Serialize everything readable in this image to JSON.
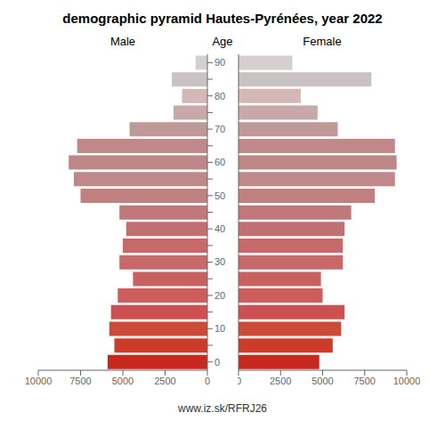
{
  "chart_data": {
    "type": "bar",
    "orientation": "horizontal",
    "title": "demographic pyramid Hautes-Pyrénées, year 2022",
    "y_label": "Age",
    "annotations": [
      "www.iz.sk/RFRJ26"
    ],
    "categories": [
      "0",
      null,
      "10",
      null,
      "20",
      null,
      "30",
      null,
      "40",
      null,
      "50",
      null,
      "60",
      null,
      "70",
      null,
      "80",
      null,
      "90"
    ],
    "series": [
      {
        "name": "Male",
        "values": [
          5900,
          5500,
          5800,
          5700,
          5300,
          4400,
          5200,
          5000,
          4800,
          5200,
          7500,
          7900,
          8200,
          7700,
          4600,
          2000,
          1500,
          2100,
          700
        ]
      },
      {
        "name": "Female",
        "values": [
          4800,
          5600,
          6100,
          6300,
          5000,
          4900,
          6200,
          6200,
          6300,
          6700,
          8100,
          9300,
          9400,
          9300,
          5900,
          4700,
          3700,
          7900,
          3200
        ]
      }
    ],
    "colors": [
      "#c8281e",
      "#cd3c28",
      "#cd4a38",
      "#cd5050",
      "#cd5c5c",
      "#c86060",
      "#c86868",
      "#c86868",
      "#c07070",
      "#c07878",
      "#c08080",
      "#c08888",
      "#bf8888",
      "#c08888",
      "#bf9898",
      "#c8a8a8",
      "#d4b8b8",
      "#c8c2c2",
      "#d4d0d0"
    ],
    "xlim": [
      0,
      10000
    ],
    "xticks": [
      0,
      2500,
      5000,
      7500,
      10000
    ],
    "grid": false
  }
}
